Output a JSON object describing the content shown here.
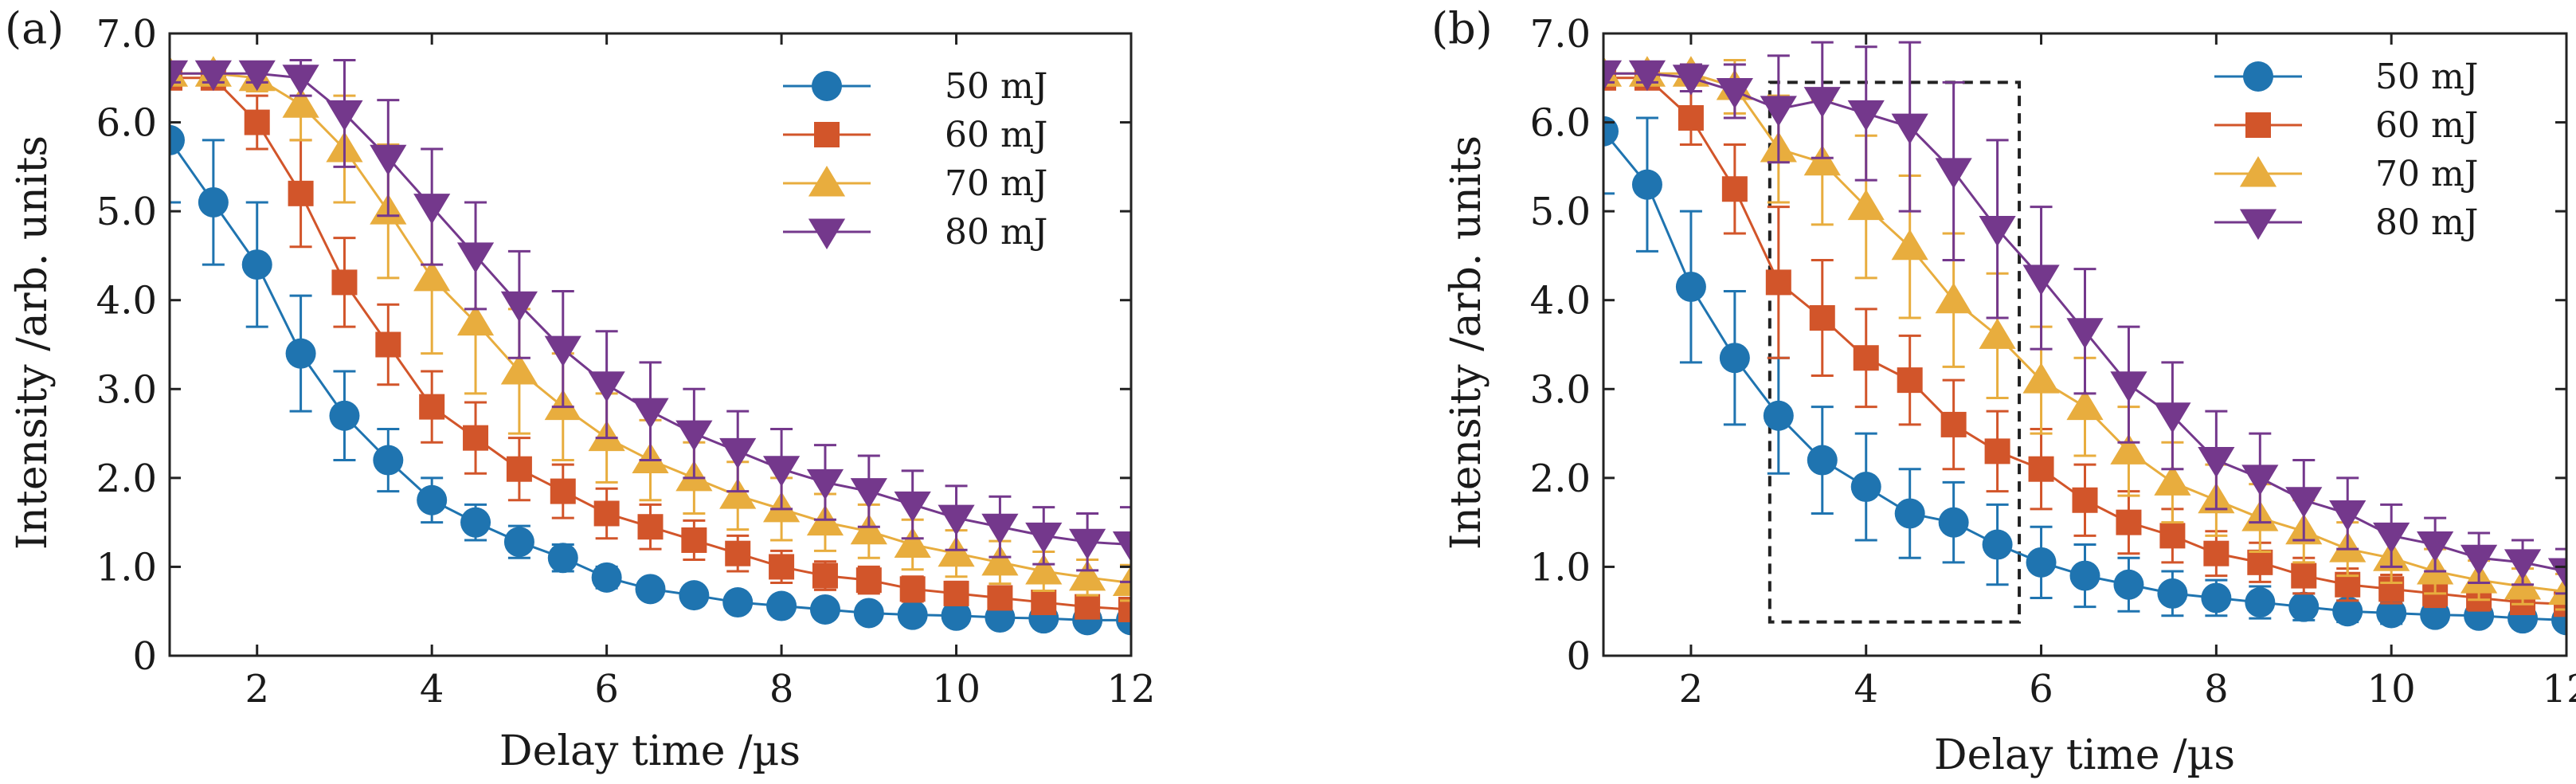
{
  "colors": {
    "s50": "#1f74b0",
    "s60": "#d2552a",
    "s70": "#e8ad3e",
    "s80": "#74388c",
    "axis": "#222222",
    "box": "#222222"
  },
  "chart_data": [
    {
      "type": "line",
      "panel_label": "(a)",
      "xlabel": "Delay time /µs",
      "ylabel": "Intensity /arb. units",
      "xlim": [
        1,
        12
      ],
      "ylim": [
        0,
        7
      ],
      "xticks": [
        2,
        4,
        6,
        8,
        10,
        12
      ],
      "xtick_labels": [
        "2",
        "4",
        "6",
        "8",
        "10",
        "12"
      ],
      "yticks": [
        0,
        1,
        2,
        3,
        4,
        5,
        6,
        7
      ],
      "ytick_labels": [
        "0",
        "1.0",
        "2.0",
        "3.0",
        "4.0",
        "5.0",
        "6.0",
        "7.0"
      ],
      "legend_position": "top-right",
      "x": [
        1,
        1.5,
        2,
        2.5,
        3,
        3.5,
        4,
        4.5,
        5,
        5.5,
        6,
        6.5,
        7,
        7.5,
        8,
        8.5,
        9,
        9.5,
        10,
        10.5,
        11,
        11.5,
        12
      ],
      "series": [
        {
          "name": "50 mJ",
          "marker": "circle",
          "color_key": "s50",
          "values": [
            5.8,
            5.1,
            4.4,
            3.4,
            2.7,
            2.2,
            1.75,
            1.5,
            1.28,
            1.1,
            0.88,
            0.75,
            0.68,
            0.6,
            0.56,
            0.52,
            0.48,
            0.46,
            0.45,
            0.43,
            0.42,
            0.4,
            0.4
          ],
          "errors": [
            0.7,
            0.7,
            0.7,
            0.65,
            0.5,
            0.35,
            0.25,
            0.2,
            0.18,
            0.15,
            0.12,
            0.1,
            0.1,
            0.08,
            0.08,
            0.08,
            0.08,
            0.07,
            0.07,
            0.07,
            0.07,
            0.06,
            0.06
          ]
        },
        {
          "name": "60 mJ",
          "marker": "square",
          "color_key": "s60",
          "values": [
            6.5,
            6.5,
            6.0,
            5.2,
            4.2,
            3.5,
            2.8,
            2.45,
            2.1,
            1.85,
            1.6,
            1.45,
            1.3,
            1.15,
            1.0,
            0.9,
            0.85,
            0.75,
            0.7,
            0.65,
            0.6,
            0.55,
            0.52
          ],
          "errors": [
            0.1,
            0.1,
            0.3,
            0.6,
            0.5,
            0.45,
            0.4,
            0.4,
            0.35,
            0.3,
            0.28,
            0.25,
            0.22,
            0.2,
            0.18,
            0.16,
            0.15,
            0.14,
            0.13,
            0.12,
            0.11,
            0.1,
            0.1
          ]
        },
        {
          "name": "70 mJ",
          "marker": "triangle-up",
          "color_key": "s70",
          "values": [
            6.55,
            6.55,
            6.5,
            6.2,
            5.7,
            5.0,
            4.25,
            3.75,
            3.2,
            2.8,
            2.45,
            2.2,
            2.0,
            1.8,
            1.65,
            1.5,
            1.4,
            1.25,
            1.15,
            1.05,
            0.95,
            0.88,
            0.82
          ],
          "errors": [
            0.1,
            0.1,
            0.15,
            0.4,
            0.6,
            0.75,
            0.85,
            0.8,
            0.7,
            0.6,
            0.5,
            0.45,
            0.4,
            0.38,
            0.35,
            0.32,
            0.3,
            0.28,
            0.26,
            0.24,
            0.22,
            0.2,
            0.2
          ]
        },
        {
          "name": "80 mJ",
          "marker": "triangle-down",
          "color_key": "s80",
          "values": [
            6.55,
            6.55,
            6.55,
            6.5,
            6.1,
            5.6,
            5.05,
            4.5,
            3.95,
            3.45,
            3.05,
            2.75,
            2.5,
            2.3,
            2.1,
            1.95,
            1.85,
            1.7,
            1.55,
            1.45,
            1.35,
            1.28,
            1.25
          ],
          "errors": [
            0.1,
            0.1,
            0.1,
            0.2,
            0.6,
            0.65,
            0.65,
            0.6,
            0.6,
            0.65,
            0.6,
            0.55,
            0.5,
            0.45,
            0.45,
            0.42,
            0.4,
            0.38,
            0.36,
            0.34,
            0.32,
            0.32,
            0.42
          ]
        }
      ]
    },
    {
      "type": "line",
      "panel_label": "(b)",
      "xlabel": "Delay time /µs",
      "ylabel": "Intensity /arb. units",
      "xlim": [
        1,
        12
      ],
      "ylim": [
        0,
        7
      ],
      "xticks": [
        2,
        4,
        6,
        8,
        10,
        12
      ],
      "xtick_labels": [
        "2",
        "4",
        "6",
        "8",
        "10",
        "12"
      ],
      "yticks": [
        0,
        1,
        2,
        3,
        4,
        5,
        6,
        7
      ],
      "ytick_labels": [
        "0",
        "1.0",
        "2.0",
        "3.0",
        "4.0",
        "5.0",
        "6.0",
        "7.0"
      ],
      "legend_position": "top-right",
      "highlight_region": {
        "x_range": [
          2.9,
          5.75
        ],
        "y_range": [
          0.38,
          6.45
        ],
        "style": "dashed"
      },
      "x": [
        1,
        1.5,
        2,
        2.5,
        3,
        3.5,
        4,
        4.5,
        5,
        5.5,
        6,
        6.5,
        7,
        7.5,
        8,
        8.5,
        9,
        9.5,
        10,
        10.5,
        11,
        11.5,
        12
      ],
      "series": [
        {
          "name": "50 mJ",
          "marker": "circle",
          "color_key": "s50",
          "values": [
            5.9,
            5.3,
            4.15,
            3.35,
            2.7,
            2.2,
            1.9,
            1.6,
            1.5,
            1.25,
            1.05,
            0.9,
            0.8,
            0.7,
            0.65,
            0.6,
            0.55,
            0.5,
            0.48,
            0.46,
            0.45,
            0.42,
            0.4
          ],
          "errors": [
            0.7,
            0.75,
            0.85,
            0.75,
            0.65,
            0.6,
            0.6,
            0.5,
            0.45,
            0.45,
            0.4,
            0.35,
            0.3,
            0.25,
            0.2,
            0.18,
            0.15,
            0.12,
            0.12,
            0.1,
            0.1,
            0.08,
            0.08
          ]
        },
        {
          "name": "60 mJ",
          "marker": "square",
          "color_key": "s60",
          "values": [
            6.5,
            6.5,
            6.05,
            5.25,
            4.2,
            3.8,
            3.35,
            3.1,
            2.6,
            2.3,
            2.1,
            1.75,
            1.5,
            1.35,
            1.15,
            1.05,
            0.9,
            0.8,
            0.75,
            0.7,
            0.65,
            0.6,
            0.58
          ],
          "errors": [
            0.1,
            0.1,
            0.3,
            0.5,
            0.85,
            0.65,
            0.55,
            0.5,
            0.5,
            0.45,
            0.45,
            0.4,
            0.35,
            0.3,
            0.25,
            0.22,
            0.2,
            0.18,
            0.16,
            0.15,
            0.14,
            0.12,
            0.12
          ]
        },
        {
          "name": "70 mJ",
          "marker": "triangle-up",
          "color_key": "s70",
          "values": [
            6.55,
            6.55,
            6.55,
            6.4,
            5.7,
            5.55,
            5.05,
            4.6,
            4.0,
            3.6,
            3.1,
            2.8,
            2.3,
            1.95,
            1.75,
            1.55,
            1.4,
            1.2,
            1.1,
            0.95,
            0.85,
            0.78,
            0.72
          ],
          "errors": [
            0.1,
            0.1,
            0.1,
            0.3,
            0.6,
            0.7,
            0.8,
            0.8,
            0.75,
            0.7,
            0.6,
            0.55,
            0.5,
            0.45,
            0.4,
            0.38,
            0.35,
            0.3,
            0.28,
            0.25,
            0.22,
            0.2,
            0.2
          ]
        },
        {
          "name": "80 mJ",
          "marker": "triangle-down",
          "color_key": "s80",
          "values": [
            6.55,
            6.55,
            6.5,
            6.35,
            6.15,
            6.25,
            6.1,
            5.95,
            5.45,
            4.8,
            4.25,
            3.65,
            3.05,
            2.7,
            2.2,
            2.0,
            1.75,
            1.6,
            1.35,
            1.25,
            1.1,
            1.05,
            0.95
          ],
          "errors": [
            0.1,
            0.1,
            0.15,
            0.3,
            0.6,
            0.65,
            0.75,
            0.95,
            1.0,
            1.0,
            0.8,
            0.7,
            0.65,
            0.6,
            0.55,
            0.5,
            0.45,
            0.4,
            0.35,
            0.3,
            0.28,
            0.25,
            0.25
          ]
        }
      ]
    }
  ]
}
